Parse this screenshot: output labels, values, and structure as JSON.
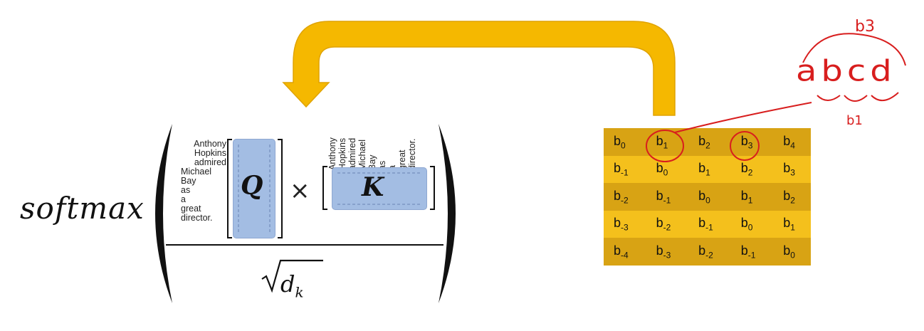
{
  "formula": {
    "func": "softmax",
    "q_label": "Q",
    "k_label": "K",
    "times": "×",
    "denominator": {
      "sqrt": "√",
      "d": "d",
      "k_sub": "k"
    },
    "words": [
      "Anthony",
      "Hopkins",
      "admired",
      "Michael",
      "Bay",
      "as",
      "a",
      "great",
      "director."
    ]
  },
  "bias_matrix": [
    [
      {
        "b": "b",
        "s": "0"
      },
      {
        "b": "b",
        "s": "1"
      },
      {
        "b": "b",
        "s": "2"
      },
      {
        "b": "b",
        "s": "3"
      },
      {
        "b": "b",
        "s": "4"
      }
    ],
    [
      {
        "b": "b",
        "s": "-1"
      },
      {
        "b": "b",
        "s": "0"
      },
      {
        "b": "b",
        "s": "1"
      },
      {
        "b": "b",
        "s": "2"
      },
      {
        "b": "b",
        "s": "3"
      }
    ],
    [
      {
        "b": "b",
        "s": "-2"
      },
      {
        "b": "b",
        "s": "-1"
      },
      {
        "b": "b",
        "s": "0"
      },
      {
        "b": "b",
        "s": "1"
      },
      {
        "b": "b",
        "s": "2"
      }
    ],
    [
      {
        "b": "b",
        "s": "-3"
      },
      {
        "b": "b",
        "s": "-2"
      },
      {
        "b": "b",
        "s": "-1"
      },
      {
        "b": "b",
        "s": "0"
      },
      {
        "b": "b",
        "s": "1"
      }
    ],
    [
      {
        "b": "b",
        "s": "-4"
      },
      {
        "b": "b",
        "s": "-3"
      },
      {
        "b": "b",
        "s": "-2"
      },
      {
        "b": "b",
        "s": "-1"
      },
      {
        "b": "b",
        "s": "0"
      }
    ]
  ],
  "annotation": {
    "letters": "abcd",
    "top_label": "b3",
    "bottom_label": "b1"
  },
  "colors": {
    "arrow": "#f5b800",
    "arrow_edge": "#e0a300",
    "matrix_blue": "#a3bde3",
    "band_dark": "#d8a314",
    "band_light": "#f4c01c",
    "ink_red": "#d81e1e"
  }
}
